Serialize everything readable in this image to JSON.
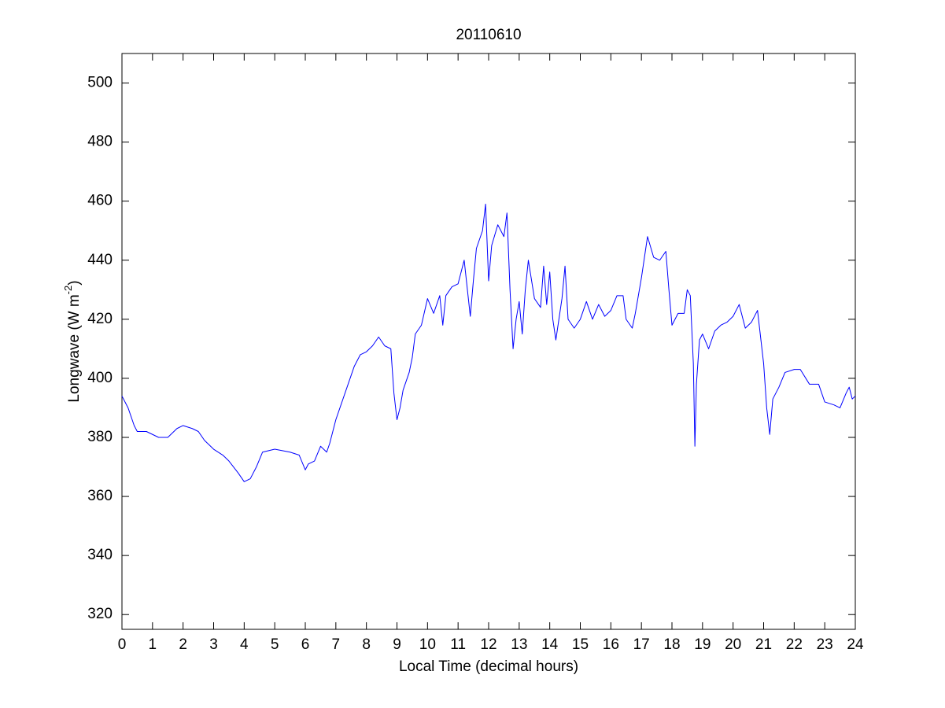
{
  "chart_data": {
    "type": "line",
    "title": "20110610",
    "xlabel": "Local Time (decimal hours)",
    "ylabel": [
      "Longwave (W m",
      "-2",
      ")"
    ],
    "xlim": [
      0,
      24
    ],
    "ylim": [
      315,
      510
    ],
    "xticks": [
      0,
      1,
      2,
      3,
      4,
      5,
      6,
      7,
      8,
      9,
      10,
      11,
      12,
      13,
      14,
      15,
      16,
      17,
      18,
      19,
      20,
      21,
      22,
      23,
      24
    ],
    "yticks": [
      320,
      340,
      360,
      380,
      400,
      420,
      440,
      460,
      480,
      500
    ],
    "grid": false,
    "color": "#0000ff",
    "x": [
      0,
      0.2,
      0.4,
      0.5,
      0.8,
      1.0,
      1.2,
      1.5,
      1.8,
      2.0,
      2.3,
      2.5,
      2.7,
      3.0,
      3.3,
      3.5,
      3.8,
      4.0,
      4.2,
      4.4,
      4.6,
      5.0,
      5.5,
      5.8,
      6.0,
      6.1,
      6.3,
      6.5,
      6.7,
      6.8,
      7.0,
      7.2,
      7.4,
      7.6,
      7.8,
      8.0,
      8.2,
      8.4,
      8.6,
      8.8,
      8.9,
      9.0,
      9.1,
      9.2,
      9.4,
      9.5,
      9.6,
      9.8,
      10.0,
      10.2,
      10.4,
      10.5,
      10.6,
      10.8,
      11.0,
      11.2,
      11.4,
      11.5,
      11.6,
      11.8,
      11.9,
      12.0,
      12.1,
      12.3,
      12.5,
      12.6,
      12.7,
      12.8,
      12.9,
      13.0,
      13.1,
      13.2,
      13.3,
      13.5,
      13.7,
      13.8,
      13.9,
      14.0,
      14.1,
      14.2,
      14.4,
      14.5,
      14.6,
      14.8,
      15.0,
      15.2,
      15.4,
      15.6,
      15.8,
      16.0,
      16.2,
      16.4,
      16.5,
      16.7,
      16.8,
      17.0,
      17.2,
      17.4,
      17.6,
      17.8,
      17.9,
      18.0,
      18.2,
      18.4,
      18.5,
      18.6,
      18.7,
      18.75,
      18.8,
      18.9,
      19.0,
      19.2,
      19.4,
      19.6,
      19.8,
      20.0,
      20.2,
      20.4,
      20.6,
      20.8,
      21.0,
      21.1,
      21.2,
      21.3,
      21.5,
      21.7,
      22.0,
      22.2,
      22.5,
      22.8,
      23.0,
      23.3,
      23.5,
      23.7,
      23.8,
      23.9,
      24.0
    ],
    "values": [
      394,
      390,
      384,
      382,
      382,
      381,
      380,
      380,
      383,
      384,
      383,
      382,
      379,
      376,
      374,
      372,
      368,
      365,
      366,
      370,
      375,
      376,
      375,
      374,
      369,
      371,
      372,
      377,
      375,
      378,
      386,
      392,
      398,
      404,
      408,
      409,
      411,
      414,
      411,
      410,
      395,
      386,
      390,
      396,
      402,
      407,
      415,
      418,
      427,
      422,
      428,
      418,
      428,
      431,
      432,
      440,
      421,
      433,
      444,
      450,
      459,
      433,
      445,
      452,
      448,
      456,
      430,
      410,
      420,
      426,
      415,
      430,
      440,
      427,
      424,
      438,
      425,
      436,
      420,
      413,
      427,
      438,
      420,
      417,
      420,
      426,
      420,
      425,
      421,
      423,
      428,
      428,
      420,
      417,
      422,
      434,
      448,
      441,
      440,
      443,
      430,
      418,
      422,
      422,
      430,
      428,
      405,
      377,
      398,
      413,
      415,
      410,
      416,
      418,
      419,
      421,
      425,
      417,
      419,
      423,
      405,
      390,
      381,
      393,
      397,
      402,
      403,
      403,
      398,
      398,
      392,
      391,
      390,
      395,
      397,
      393,
      394
    ]
  }
}
